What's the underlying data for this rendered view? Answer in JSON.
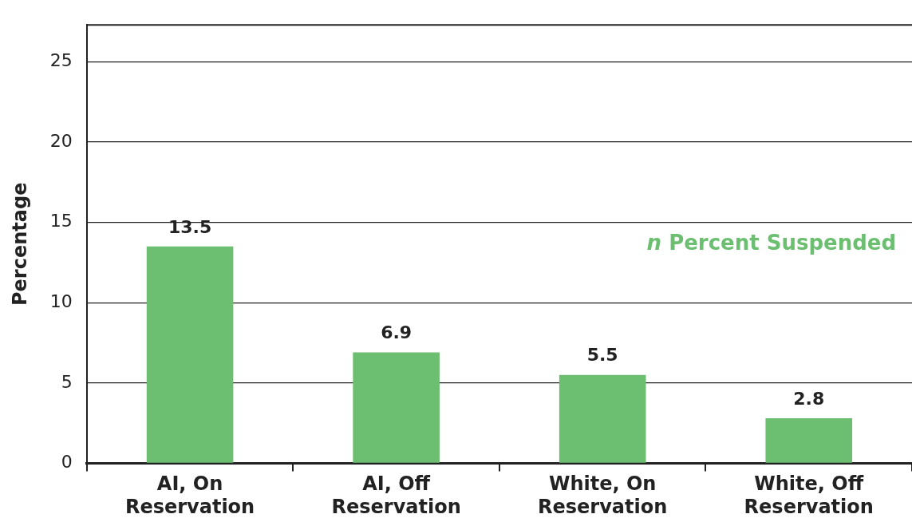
{
  "chart_data": {
    "type": "bar",
    "ylabel": "Percentage",
    "categories": [
      "AI, On Reservation",
      "AI, Off Reservation",
      "White, On Reservation",
      "White, Off Reservation"
    ],
    "series": [
      {
        "name": "n Percent Suspended",
        "color": "#6cbf70",
        "values": [
          13.5,
          6.9,
          5.5,
          2.8
        ]
      }
    ],
    "ylim": [
      0,
      27.3
    ],
    "yticks": [
      0,
      5,
      10,
      15,
      20,
      25
    ],
    "grid": "y",
    "legend": "right",
    "data_labels": true
  }
}
